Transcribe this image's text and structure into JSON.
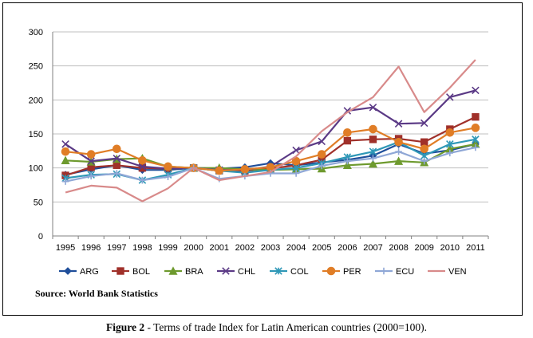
{
  "figure": {
    "source": "Source:  World Bank Statistics",
    "caption_label": "Figure 2",
    "caption_text": " - Terms of trade Index for Latin American countries (2000=100)."
  },
  "chart_data": {
    "type": "line",
    "title": "",
    "xlabel": "",
    "ylabel": "",
    "x": [
      "1995",
      "1996",
      "1997",
      "1998",
      "1999",
      "2000",
      "2001",
      "2002",
      "2003",
      "2004",
      "2005",
      "2006",
      "2007",
      "2008",
      "2009",
      "2010",
      "2011"
    ],
    "ylim": [
      0,
      300
    ],
    "yticks": [
      0,
      50,
      100,
      150,
      200,
      250,
      300
    ],
    "grid": true,
    "legend_position": "bottom",
    "series": [
      {
        "name": "ARG",
        "color": "#1f4e9a",
        "marker": "diamond",
        "values": [
          90,
          98,
          104,
          97,
          97,
          100,
          99,
          101,
          107,
          104,
          108,
          112,
          118,
          135,
          121,
          126,
          135
        ]
      },
      {
        "name": "BOL",
        "color": "#a0302a",
        "marker": "square",
        "values": [
          89,
          101,
          104,
          100,
          99,
          100,
          96,
          96,
          99,
          104,
          112,
          140,
          142,
          143,
          138,
          157,
          175
        ]
      },
      {
        "name": "BRA",
        "color": "#6e9a2e",
        "marker": "triangle",
        "values": [
          111,
          109,
          113,
          114,
          102,
          100,
          100,
          98,
          97,
          98,
          99,
          104,
          106,
          110,
          108,
          128,
          135
        ]
      },
      {
        "name": "CHL",
        "color": "#5b3a86",
        "marker": "x",
        "values": [
          135,
          110,
          114,
          102,
          99,
          100,
          97,
          97,
          102,
          126,
          139,
          184,
          189,
          165,
          166,
          204,
          214
        ]
      },
      {
        "name": "COL",
        "color": "#2f98b7",
        "marker": "star",
        "values": [
          85,
          90,
          91,
          82,
          90,
          100,
          96,
          93,
          97,
          100,
          107,
          116,
          124,
          138,
          118,
          135,
          142
        ]
      },
      {
        "name": "PER",
        "color": "#e07d26",
        "marker": "circle",
        "values": [
          124,
          120,
          128,
          111,
          102,
          100,
          96,
          98,
          101,
          110,
          120,
          152,
          157,
          138,
          128,
          152,
          159
        ]
      },
      {
        "name": "ECU",
        "color": "#8fa7d6",
        "marker": "plus",
        "values": [
          80,
          88,
          92,
          82,
          87,
          100,
          84,
          88,
          92,
          92,
          103,
          110,
          114,
          124,
          110,
          122,
          130
        ]
      },
      {
        "name": "VEN",
        "color": "#d88a8a",
        "marker": "none",
        "values": [
          64,
          74,
          71,
          51,
          70,
          100,
          82,
          88,
          94,
          117,
          154,
          182,
          204,
          249,
          182,
          218,
          259
        ]
      }
    ]
  }
}
